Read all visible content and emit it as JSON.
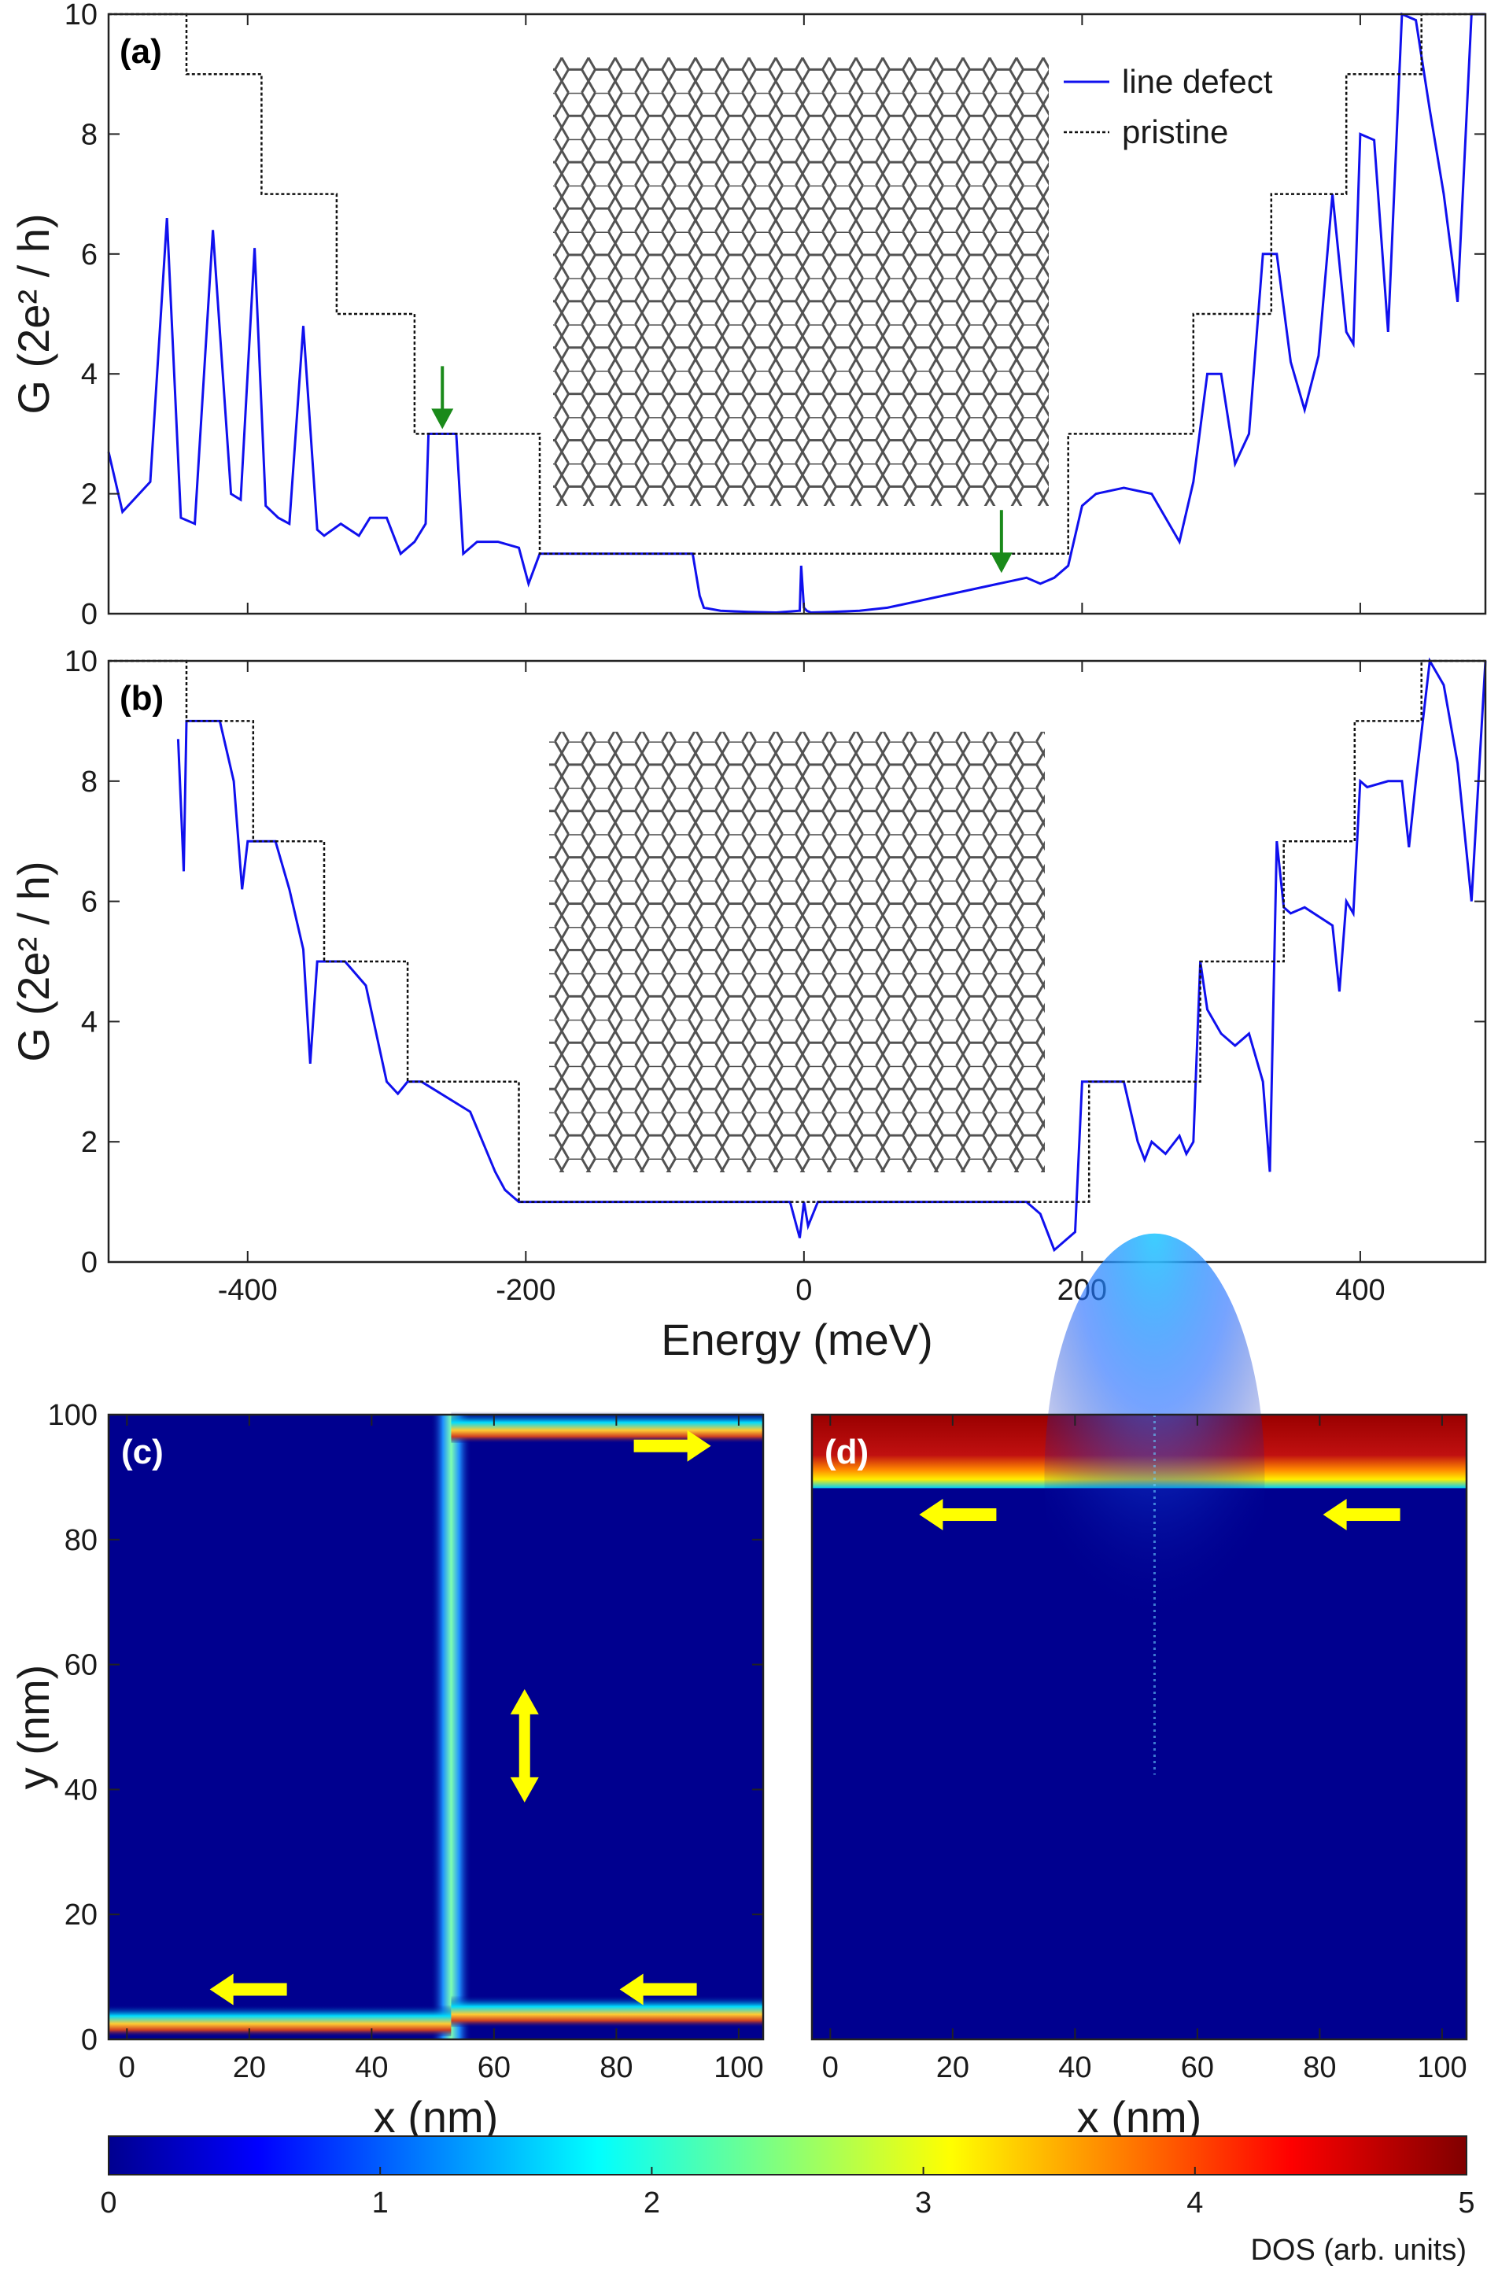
{
  "chart_data": [
    {
      "panel": "(a)",
      "type": "line",
      "xlabel": "",
      "ylabel": "G (2e² / h)",
      "xlim": [
        -500,
        490
      ],
      "ylim": [
        0,
        10
      ],
      "yticks": [
        "0",
        "2",
        "4",
        "6",
        "8",
        "10"
      ],
      "legend": {
        "placement": "top-right",
        "entries": [
          "line defect",
          "pristine"
        ]
      },
      "series": [
        {
          "name": "line defect",
          "color": "#1010ee",
          "x": [
            -500,
            -490,
            -470,
            -458,
            -448,
            -438,
            -425,
            -412,
            -405,
            -395,
            -387,
            -378,
            -370,
            -360,
            -350,
            -345,
            -333,
            -320,
            -312,
            -300,
            -290,
            -280,
            -272,
            -270,
            -250,
            -245,
            -235,
            -220,
            -205,
            -198,
            -190,
            -180,
            -170,
            -160,
            -150,
            -140,
            -130,
            -120,
            -110,
            -100,
            -90,
            -80,
            -75,
            -72,
            -60,
            -40,
            -20,
            -3,
            -2,
            0,
            2,
            5,
            20,
            40,
            60,
            80,
            100,
            120,
            140,
            160,
            170,
            180,
            190,
            200,
            210,
            230,
            250,
            270,
            280,
            290,
            300,
            310,
            320,
            330,
            340,
            350,
            360,
            370,
            380,
            390,
            395,
            400,
            410,
            420,
            430,
            440,
            450,
            460,
            470,
            480,
            490
          ],
          "y": [
            2.7,
            1.7,
            2.2,
            6.6,
            1.6,
            1.5,
            6.4,
            2.0,
            1.9,
            6.1,
            1.8,
            1.6,
            1.5,
            4.8,
            1.4,
            1.3,
            1.5,
            1.3,
            1.6,
            1.6,
            1.0,
            1.2,
            1.5,
            3.0,
            3.0,
            1.0,
            1.2,
            1.2,
            1.1,
            0.5,
            1.0,
            1.0,
            1.0,
            1.0,
            1.0,
            1.0,
            1.0,
            1.0,
            1.0,
            1.0,
            1.0,
            1.0,
            0.3,
            0.1,
            0.05,
            0.03,
            0.02,
            0.05,
            0.8,
            0.1,
            0.05,
            0.02,
            0.03,
            0.05,
            0.1,
            0.2,
            0.3,
            0.4,
            0.5,
            0.6,
            0.5,
            0.6,
            0.8,
            1.8,
            2.0,
            2.1,
            2.0,
            1.2,
            2.2,
            4.0,
            4.0,
            2.5,
            3.0,
            6.0,
            6.0,
            4.2,
            3.4,
            4.3,
            7.0,
            4.7,
            4.5,
            8.0,
            7.9,
            4.7,
            10.0,
            9.9,
            8.4,
            7.0,
            5.2,
            10.0,
            10.0
          ]
        },
        {
          "name": "pristine",
          "color": "#111111",
          "x": [
            -500,
            -444,
            -444,
            -390,
            -390,
            -336,
            -336,
            -280,
            -280,
            -190,
            -190,
            190,
            190,
            280,
            280,
            336,
            336,
            390,
            390,
            444,
            444,
            490
          ],
          "y": [
            10,
            10,
            9,
            9,
            7,
            7,
            5,
            5,
            3,
            3,
            1,
            1,
            3,
            3,
            5,
            5,
            7,
            7,
            9,
            9,
            10,
            10
          ]
        }
      ],
      "annotations": [
        {
          "type": "arrow",
          "color": "#1a8a1a",
          "x": -260,
          "y": 3.0
        },
        {
          "type": "arrow",
          "color": "#1a8a1a",
          "x": 142,
          "y": 0.6
        }
      ]
    },
    {
      "panel": "(b)",
      "type": "line",
      "xlabel": "Energy (meV)",
      "ylabel": "G (2e² / h)",
      "xlim": [
        -500,
        490
      ],
      "ylim": [
        0,
        10
      ],
      "xticks": [
        "-400",
        "-200",
        "0",
        "200",
        "400"
      ],
      "yticks": [
        "0",
        "2",
        "4",
        "6",
        "8",
        "10"
      ],
      "series": [
        {
          "name": "line defect",
          "color": "#1010ee",
          "x": [
            -450,
            -446,
            -444,
            -440,
            -420,
            -410,
            -404,
            -400,
            -395,
            -380,
            -370,
            -360,
            -355,
            -350,
            -345,
            -330,
            -315,
            -300,
            -292,
            -285,
            -283,
            -275,
            -240,
            -222,
            -215,
            -210,
            -205,
            -200,
            -195,
            -100,
            -30,
            -10,
            -3,
            0,
            3,
            10,
            100,
            160,
            170,
            180,
            190,
            195,
            200,
            230,
            240,
            245,
            250,
            260,
            270,
            275,
            280,
            285,
            290,
            300,
            310,
            320,
            330,
            335,
            340,
            345,
            350,
            360,
            380,
            385,
            390,
            395,
            400,
            405,
            420,
            430,
            435,
            440,
            450,
            460,
            470,
            480,
            490
          ],
          "y": [
            8.7,
            6.5,
            9.0,
            9.0,
            9.0,
            8.0,
            6.2,
            7.0,
            7.0,
            7.0,
            6.2,
            5.2,
            3.3,
            5.0,
            5.0,
            5.0,
            4.6,
            3.0,
            2.8,
            3.0,
            3.0,
            3.0,
            2.5,
            1.5,
            1.2,
            1.1,
            1.0,
            1.0,
            1.0,
            1.0,
            1.0,
            1.0,
            0.4,
            1.0,
            0.6,
            1.0,
            1.0,
            1.0,
            0.8,
            0.2,
            0.4,
            0.5,
            3.0,
            3.0,
            2.0,
            1.7,
            2.0,
            1.8,
            2.1,
            1.8,
            2.0,
            5.0,
            4.2,
            3.8,
            3.6,
            3.8,
            3.0,
            1.5,
            7.0,
            5.9,
            5.8,
            5.9,
            5.6,
            4.5,
            6.0,
            5.8,
            8.0,
            7.9,
            8.0,
            8.0,
            6.9,
            8.0,
            10.0,
            9.6,
            8.3,
            6.0,
            10.0
          ]
        },
        {
          "name": "pristine",
          "color": "#111111",
          "x": [
            -500,
            -444,
            -444,
            -396,
            -396,
            -345,
            -345,
            -285,
            -285,
            -205,
            -205,
            205,
            205,
            285,
            285,
            345,
            345,
            396,
            396,
            444,
            444,
            490
          ],
          "y": [
            10,
            10,
            9,
            9,
            7,
            7,
            5,
            5,
            3,
            3,
            1,
            1,
            3,
            3,
            5,
            5,
            7,
            7,
            9,
            9,
            10,
            10
          ]
        }
      ]
    },
    {
      "panel": "(c)",
      "type": "heatmap",
      "xlabel": "x (nm)",
      "ylabel": "y (nm)",
      "xlim": [
        -3,
        104
      ],
      "ylim": [
        0,
        100
      ],
      "xticks": [
        "0",
        "20",
        "40",
        "60",
        "80",
        "100"
      ],
      "yticks": [
        "0",
        "20",
        "40",
        "60",
        "80",
        "100"
      ],
      "features": [
        {
          "type": "vertical-band",
          "x": 53,
          "y": [
            0,
            100
          ],
          "level": 2.2
        },
        {
          "type": "horizontal-band",
          "x": [
            -3,
            53
          ],
          "y": 2.5,
          "level": 2.5
        },
        {
          "type": "horizontal-band",
          "x": [
            53,
            104
          ],
          "y": 4,
          "level": 3.5
        },
        {
          "type": "horizontal-band",
          "x": [
            53,
            104
          ],
          "y": 97.5,
          "level": 2.5
        }
      ],
      "annotations": [
        {
          "type": "arrow",
          "direction": "right",
          "color": "#ffff00",
          "x": 88,
          "y": 95
        },
        {
          "type": "arrow",
          "direction": "up-down",
          "color": "#ffff00",
          "x": 65,
          "y": 47
        },
        {
          "type": "arrow",
          "direction": "left",
          "color": "#ffff00",
          "x": 21,
          "y": 8
        },
        {
          "type": "arrow",
          "direction": "left",
          "color": "#ffff00",
          "x": 88,
          "y": 8
        }
      ]
    },
    {
      "panel": "(d)",
      "type": "heatmap",
      "xlabel": "x (nm)",
      "ylabel": "",
      "xlim": [
        -3,
        104
      ],
      "ylim": [
        0,
        100
      ],
      "xticks": [
        "0",
        "20",
        "40",
        "60",
        "80",
        "100"
      ],
      "features": [
        {
          "type": "horizontal-band",
          "x": [
            -3,
            104
          ],
          "y": [
            90,
            100
          ],
          "level": 4.8
        },
        {
          "type": "plume",
          "x": 53,
          "y": [
            60,
            90
          ],
          "level": 1.5
        }
      ],
      "annotations": [
        {
          "type": "arrow",
          "direction": "left",
          "color": "#ffff00",
          "x": 22,
          "y": 84
        },
        {
          "type": "arrow",
          "direction": "left",
          "color": "#ffff00",
          "x": 88,
          "y": 84
        }
      ]
    }
  ],
  "colorbar": {
    "range": [
      0,
      5
    ],
    "ticks": [
      "0",
      "1",
      "2",
      "3",
      "4",
      "5"
    ],
    "label": "DOS (arb. units)",
    "colormap": "jet"
  },
  "panel_labels": [
    "(a)",
    "(b)",
    "(c)",
    "(d)"
  ]
}
